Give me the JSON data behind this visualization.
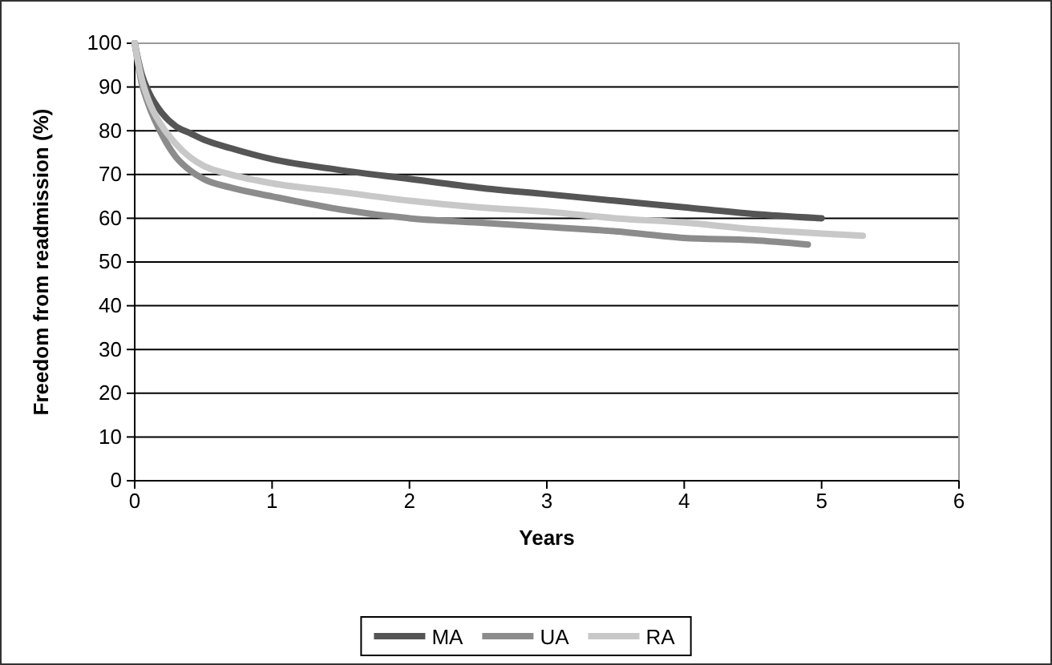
{
  "chart_data": {
    "type": "line",
    "xlabel": "Years",
    "ylabel": "Freedom from readmission (%)",
    "xlim": [
      0,
      6
    ],
    "xticks": [
      0,
      1,
      2,
      3,
      4,
      5,
      6
    ],
    "ylim": [
      0,
      100
    ],
    "yticks": [
      0,
      10,
      20,
      30,
      40,
      50,
      60,
      70,
      80,
      90,
      100
    ],
    "grid": "y",
    "legend": "bottom",
    "marker": "none",
    "line_style": "solid",
    "series": [
      {
        "name": "MA",
        "color": "#555555",
        "x": [
          0,
          0.05,
          0.1,
          0.2,
          0.3,
          0.4,
          0.5,
          0.7,
          1,
          1.5,
          2,
          2.5,
          3,
          3.5,
          4,
          4.5,
          5
        ],
        "values": [
          100,
          93,
          89,
          84,
          81,
          79.5,
          78,
          76,
          73.5,
          71,
          69,
          67,
          65.5,
          64,
          62.5,
          61,
          60
        ]
      },
      {
        "name": "UA",
        "color": "#8c8c8c",
        "x": [
          0,
          0.05,
          0.1,
          0.2,
          0.3,
          0.4,
          0.5,
          0.7,
          1,
          1.5,
          2,
          2.5,
          3,
          3.5,
          4,
          4.5,
          4.9
        ],
        "values": [
          100,
          91,
          86,
          79,
          74,
          71,
          69,
          67,
          65,
          62,
          60,
          59,
          58,
          57,
          55.5,
          55,
          54
        ]
      },
      {
        "name": "RA",
        "color": "#c8c8c8",
        "x": [
          0,
          0.05,
          0.1,
          0.2,
          0.3,
          0.4,
          0.5,
          0.7,
          1,
          1.5,
          2,
          2.5,
          3,
          3.5,
          4,
          4.5,
          5,
          5.3
        ],
        "values": [
          100,
          92,
          87,
          81,
          77,
          74,
          72,
          70,
          68,
          66,
          64,
          62.5,
          61.5,
          60,
          59,
          57.5,
          56.5,
          56
        ]
      }
    ]
  }
}
